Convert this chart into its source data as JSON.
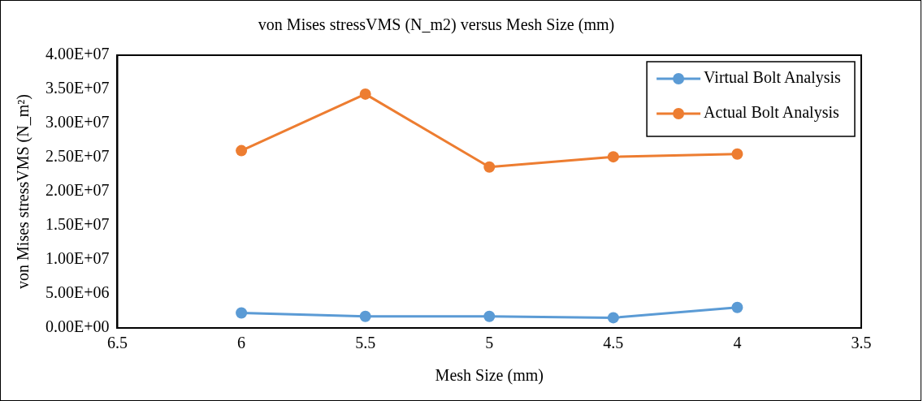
{
  "chart_data": {
    "type": "line",
    "title": "von Mises stressVMS (N_m2) versus Mesh Size (mm)",
    "xlabel": "Mesh Size (mm)",
    "ylabel": "von Mises stressVMS (N_m²)",
    "x": [
      6,
      5.5,
      5,
      4.5,
      4
    ],
    "series": [
      {
        "name": "Virtual Bolt Analysis",
        "color": "#5b9bd5",
        "values": [
          2200000,
          1700000,
          1700000,
          1500000,
          3000000
        ]
      },
      {
        "name": "Actual Bolt Analysis",
        "color": "#ed7d31",
        "values": [
          26000000,
          34300000,
          23600000,
          25100000,
          25500000
        ]
      }
    ],
    "xlim": [
      6.5,
      3.5
    ],
    "xticks": [
      6.5,
      6,
      5.5,
      5,
      4.5,
      4,
      3.5
    ],
    "ylim": [
      0,
      40000000
    ],
    "yticks": [
      {
        "value": 0,
        "label": "0.00E+00"
      },
      {
        "value": 5000000,
        "label": "5.00E+06"
      },
      {
        "value": 10000000,
        "label": "1.00E+07"
      },
      {
        "value": 15000000,
        "label": "1.50E+07"
      },
      {
        "value": 20000000,
        "label": "2.00E+07"
      },
      {
        "value": 25000000,
        "label": "2.50E+07"
      },
      {
        "value": 30000000,
        "label": "3.00E+07"
      },
      {
        "value": 35000000,
        "label": "3.50E+07"
      },
      {
        "value": 40000000,
        "label": "4.00E+07"
      }
    ],
    "grid": false,
    "legend": "top right",
    "marker": "circle",
    "line_style": "solid"
  }
}
